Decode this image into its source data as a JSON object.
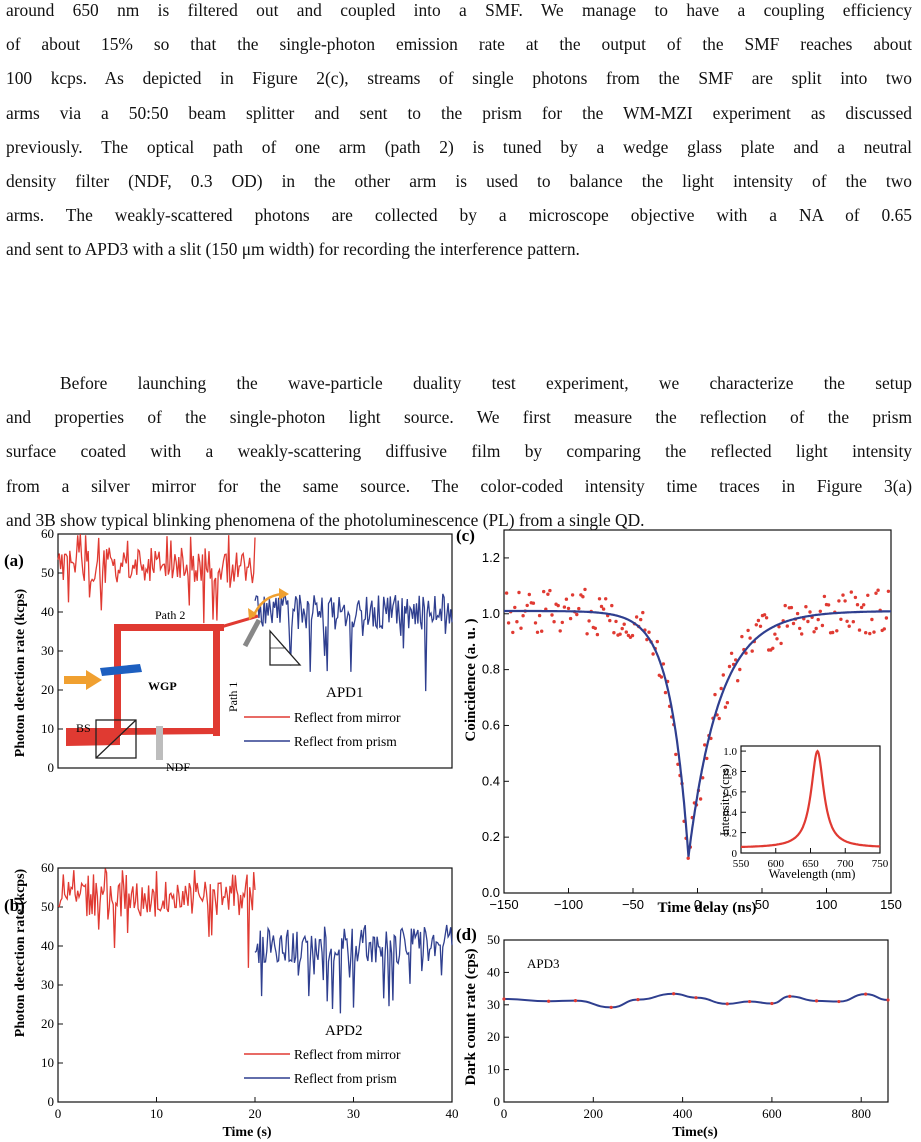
{
  "paragraphs": [
    {
      "lines": [
        "around 650 nm is filtered out and coupled into a SMF. We manage to have a coupling efficiency",
        "of about 15% so that the single-photon emission rate at the output of the SMF reaches about",
        "100 kcps. As depicted in Figure 2(c), streams of single photons from the SMF are split into two",
        "arms via a 50:50 beam splitter and sent to the prism for the WM-MZI experiment as discussed",
        "previously. The optical path of one arm (path 2) is tuned by a wedge glass plate and a neutral",
        "density filter (NDF, 0.3 OD) in the other arm is used to balance the light intensity of the two",
        "arms. The weakly-scattered photons are collected by a microscope objective with a NA of 0.65",
        "and sent to APD3 with a slit (150 μm width) for recording the interference pattern."
      ]
    },
    {
      "lines": [
        "Before launching the wave-particle duality test experiment, we characterize the setup",
        "and properties of the single-photon light source. We first measure the reflection of the prism",
        "surface coated with a weakly-scattering diffusive film by comparing the reflected light intensity",
        "from a silver mirror for the same source. The color-coded intensity time traces in Figure 3(a)",
        "and 3B show typical blinking phenomena of the photoluminescence (PL) from a single QD."
      ]
    }
  ],
  "colors": {
    "red": "#e03a32",
    "blue": "#2f3f8f"
  },
  "figure": {
    "panel_a": {
      "letter": "(a)",
      "ylabel": "Photon detection rate (kcps)",
      "detector": "APD1",
      "legend": [
        "Reflect from mirror",
        "Reflect from prism"
      ],
      "setup_labels": {
        "path2": "Path 2",
        "path1": "Path 1",
        "wgp": "WGP",
        "bs": "BS",
        "ndf": "NDF"
      }
    },
    "panel_b": {
      "letter": "(b)",
      "ylabel": "Photon detection rate (kcps)",
      "detector": "APD2",
      "legend": [
        "Reflect from mirror",
        "Reflect from prism"
      ],
      "xlabel": "Time (s)"
    },
    "panel_c": {
      "letter": "(c)",
      "ylabel": "Coincidence (a. u. )",
      "xlabel": "Time delay (ns)",
      "inset_ylabel": "Intensity (cps)",
      "inset_xlabel": "Wavelength (nm)"
    },
    "panel_d": {
      "letter": "(d)",
      "ylabel": "Dark count rate (cps)",
      "xlabel": "Time(s)",
      "detector": "APD3"
    }
  },
  "chart_data": [
    {
      "type": "line",
      "panel": "a",
      "xlim": [
        0,
        40
      ],
      "ylim": [
        0,
        60
      ],
      "x_ticks": [],
      "y_ticks": [
        0,
        10,
        20,
        30,
        40,
        50,
        60
      ],
      "series": [
        {
          "name": "Reflect from mirror",
          "x_range": [
            0,
            20
          ],
          "mean": 52,
          "min": 35,
          "max": 60
        },
        {
          "name": "Reflect from prism",
          "x_range": [
            20,
            40
          ],
          "mean": 40,
          "min": 18,
          "max": 45
        }
      ]
    },
    {
      "type": "line",
      "panel": "b",
      "xlim": [
        0,
        40
      ],
      "ylim": [
        0,
        60
      ],
      "x_ticks": [
        0,
        10,
        20,
        30,
        40
      ],
      "y_ticks": [
        0,
        10,
        20,
        30,
        40,
        50,
        60
      ],
      "series": [
        {
          "name": "Reflect from mirror",
          "x_range": [
            0,
            20
          ],
          "mean": 52,
          "min": 34,
          "max": 60
        },
        {
          "name": "Reflect from prism",
          "x_range": [
            20,
            40
          ],
          "mean": 40,
          "min": 20,
          "max": 46
        }
      ]
    },
    {
      "type": "scatter",
      "panel": "c",
      "xlim": [
        -150,
        150
      ],
      "ylim": [
        0,
        1.3
      ],
      "x_ticks": [
        -150,
        -100,
        -50,
        0,
        50,
        100,
        150
      ],
      "y_ticks": [
        0,
        0.2,
        0.4,
        0.6,
        0.8,
        1.0,
        1.2
      ],
      "fit": {
        "baseline": 1.01,
        "minimum": 0.13,
        "center": -7,
        "tau_left": 14,
        "tau_right": 24
      },
      "inset": {
        "type": "line",
        "xlim": [
          550,
          750
        ],
        "ylim": [
          0,
          1.05
        ],
        "x_ticks": [
          550,
          600,
          650,
          700,
          750
        ],
        "y_ticks": [
          0,
          0.2,
          0.4,
          0.6,
          0.8,
          1.0
        ],
        "peak_wavelength": 660,
        "peak": 1.0
      }
    },
    {
      "type": "line",
      "panel": "d",
      "xlim": [
        0,
        860
      ],
      "ylim": [
        0,
        50
      ],
      "x_ticks": [
        0,
        200,
        400,
        600,
        800
      ],
      "y_ticks": [
        0,
        10,
        20,
        30,
        40,
        50
      ],
      "x": [
        0,
        100,
        160,
        240,
        300,
        380,
        430,
        500,
        550,
        600,
        640,
        700,
        750,
        810,
        860
      ],
      "y": [
        31.8,
        31.1,
        31.3,
        29.2,
        31.6,
        33.4,
        32.2,
        30.3,
        31.0,
        30.4,
        32.6,
        31.2,
        31.0,
        33.3,
        31.5
      ]
    }
  ]
}
